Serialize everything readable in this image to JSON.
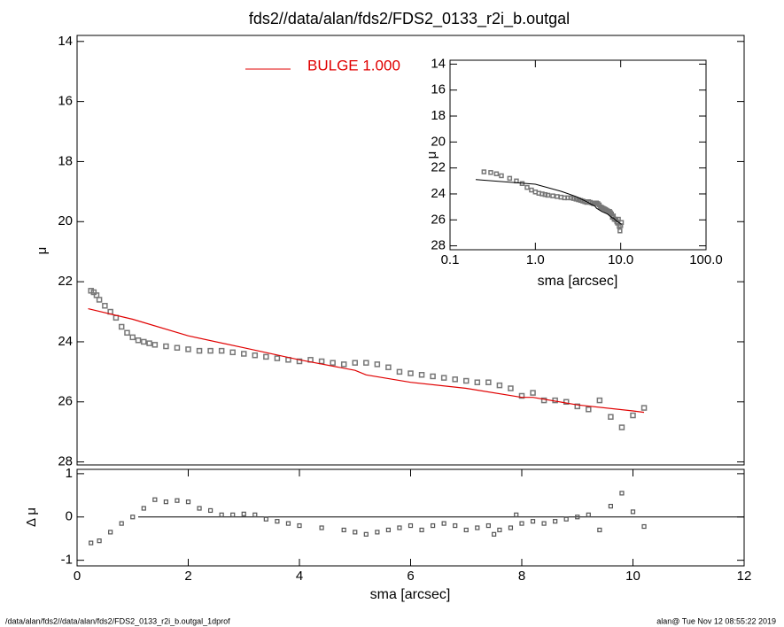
{
  "chart_data": [
    {
      "type": "scatter",
      "title": "fds2//data/alan/fds2/FDS2_0133_r2i_b.outgal",
      "y_label": "μ",
      "xlim": [
        0,
        12
      ],
      "ylim": [
        13.8,
        28.1
      ],
      "inverted_y": true,
      "yticks": [
        14,
        16,
        18,
        20,
        22,
        24,
        26,
        28
      ],
      "points": {
        "color": "#777777",
        "x": [
          0.25,
          0.3,
          0.35,
          0.4,
          0.5,
          0.6,
          0.7,
          0.8,
          0.9,
          1.0,
          1.1,
          1.2,
          1.3,
          1.4,
          1.6,
          1.8,
          2.0,
          2.2,
          2.4,
          2.6,
          2.8,
          3.0,
          3.2,
          3.4,
          3.6,
          3.8,
          4.0,
          4.2,
          4.4,
          4.6,
          4.8,
          5.0,
          5.2,
          5.4,
          5.6,
          5.8,
          6.0,
          6.2,
          6.4,
          6.6,
          6.8,
          7.0,
          7.2,
          7.4,
          7.6,
          7.8,
          8.0,
          8.2,
          8.4,
          8.6,
          8.8,
          9.0,
          9.2,
          9.4,
          9.6,
          9.8,
          10.0,
          10.2
        ],
        "values": [
          22.3,
          22.35,
          22.45,
          22.6,
          22.8,
          23.0,
          23.2,
          23.5,
          23.7,
          23.85,
          23.95,
          24.0,
          24.05,
          24.1,
          24.15,
          24.2,
          24.25,
          24.3,
          24.3,
          24.3,
          24.35,
          24.4,
          24.45,
          24.5,
          24.55,
          24.6,
          24.65,
          24.6,
          24.65,
          24.7,
          24.75,
          24.7,
          24.7,
          24.75,
          24.85,
          25.0,
          25.05,
          25.1,
          25.15,
          25.2,
          25.25,
          25.3,
          25.35,
          25.35,
          25.45,
          25.55,
          25.8,
          25.7,
          25.95,
          25.95,
          26.0,
          26.15,
          26.25,
          25.95,
          26.5,
          26.85,
          26.45,
          26.2
        ]
      },
      "series": [
        {
          "name": "BULGE  1.000",
          "color": "#e00000",
          "x": [
            0.2,
            1.0,
            2.0,
            3.0,
            4.0,
            5.0,
            5.2,
            6.0,
            7.0,
            8.0,
            8.2,
            9.0,
            10.0,
            10.2
          ],
          "values": [
            22.9,
            23.25,
            23.8,
            24.2,
            24.6,
            24.95,
            25.1,
            25.35,
            25.55,
            25.85,
            25.85,
            26.1,
            26.3,
            26.35
          ]
        }
      ]
    },
    {
      "type": "residual",
      "y_label": "Δ μ",
      "x_label": "sma [arcsec]",
      "xlim": [
        0,
        12
      ],
      "ylim": [
        -1.13,
        1.1
      ],
      "xticks": [
        0,
        2,
        4,
        6,
        8,
        10,
        12
      ],
      "yticks": [
        1,
        0,
        -1
      ],
      "x": [
        0.25,
        0.4,
        0.6,
        0.8,
        1.0,
        1.2,
        1.4,
        1.6,
        1.8,
        2.0,
        2.2,
        2.4,
        2.6,
        2.8,
        3.0,
        3.2,
        3.4,
        3.6,
        3.8,
        4.0,
        4.4,
        4.8,
        5.0,
        5.2,
        5.4,
        5.6,
        5.8,
        6.0,
        6.2,
        6.4,
        6.6,
        6.8,
        7.0,
        7.2,
        7.4,
        7.5,
        7.6,
        7.8,
        7.9,
        8.0,
        8.2,
        8.4,
        8.6,
        8.8,
        9.0,
        9.2,
        9.4,
        9.6,
        9.8,
        10.0,
        10.2
      ],
      "values": [
        -0.6,
        -0.55,
        -0.35,
        -0.15,
        0.0,
        0.2,
        0.4,
        0.35,
        0.38,
        0.35,
        0.2,
        0.15,
        0.05,
        0.05,
        0.07,
        0.05,
        -0.05,
        -0.1,
        -0.15,
        -0.2,
        -0.25,
        -0.3,
        -0.35,
        -0.4,
        -0.35,
        -0.3,
        -0.25,
        -0.2,
        -0.3,
        -0.2,
        -0.15,
        -0.2,
        -0.3,
        -0.25,
        -0.2,
        -0.4,
        -0.3,
        -0.25,
        0.05,
        -0.15,
        -0.1,
        -0.15,
        -0.1,
        -0.05,
        0.0,
        0.05,
        -0.3,
        0.25,
        0.55,
        0.12,
        -0.22
      ]
    },
    {
      "type": "inset",
      "y_label": "μ",
      "x_label": "sma [arcsec]",
      "log_x": true,
      "xlim": [
        0.1,
        100
      ],
      "ylim": [
        13.7,
        28.3
      ],
      "xticks": [
        {
          "value": 0.1,
          "label": "0.1"
        },
        {
          "value": 1,
          "label": "1.0"
        },
        {
          "value": 10,
          "label": "10.0"
        },
        {
          "value": 100,
          "label": "100.0"
        }
      ],
      "yticks": [
        14,
        16,
        18,
        20,
        22,
        24,
        26,
        28
      ]
    }
  ],
  "footer": {
    "left": "/data/alan/fds2//data/alan/fds2/FDS2_0133_r2i_b.outgal_1dprof",
    "right": "alan@  Tue Nov 12 08:55:22 2019"
  }
}
